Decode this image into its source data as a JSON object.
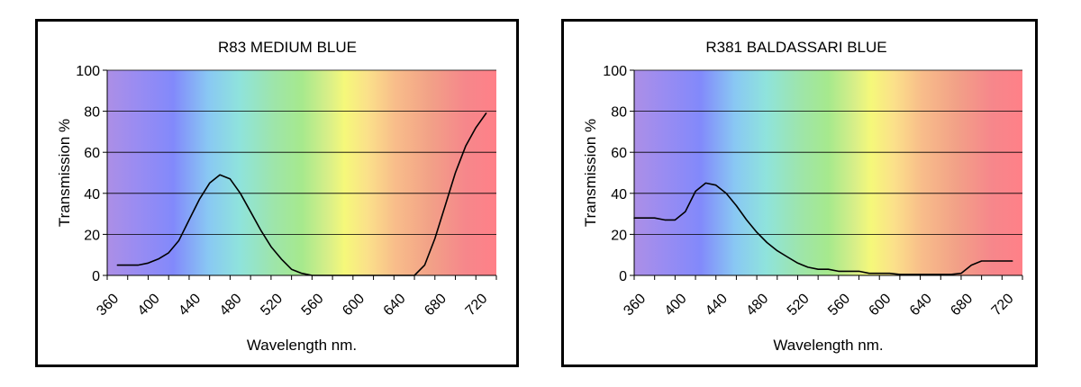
{
  "chart_data": [
    {
      "type": "line",
      "title": "R83 MEDIUM BLUE",
      "xlabel": "Wavelength nm.",
      "ylabel": "Transmission %",
      "xlim": [
        360,
        740
      ],
      "ylim": [
        0,
        100
      ],
      "x_ticks": [
        360,
        400,
        440,
        480,
        520,
        560,
        600,
        640,
        680,
        720
      ],
      "y_ticks": [
        0,
        20,
        40,
        60,
        80,
        100
      ],
      "grid": true,
      "background": "visible-spectrum",
      "line_color": "#000000",
      "series": [
        {
          "x": [
            370,
            380,
            390,
            400,
            410,
            420,
            430,
            440,
            450,
            460,
            470,
            480,
            490,
            500,
            510,
            520,
            530,
            540,
            550,
            560,
            570,
            580,
            590,
            600,
            610,
            620,
            630,
            640,
            650,
            660,
            670,
            680,
            690,
            700,
            710,
            720,
            730
          ],
          "y": [
            5,
            5,
            5,
            6,
            8,
            11,
            17,
            27,
            37,
            45,
            49,
            47,
            40,
            31,
            22,
            14,
            8,
            3,
            1,
            0,
            0,
            0,
            0,
            0,
            0,
            0,
            0,
            0,
            0,
            0,
            5,
            18,
            34,
            50,
            63,
            72,
            79
          ]
        }
      ]
    },
    {
      "type": "line",
      "title": "R381 BALDASSARI BLUE",
      "xlabel": "Wavelength nm.",
      "ylabel": "Transmission %",
      "xlim": [
        360,
        740
      ],
      "ylim": [
        0,
        100
      ],
      "x_ticks": [
        360,
        400,
        440,
        480,
        520,
        560,
        600,
        640,
        680,
        720
      ],
      "y_ticks": [
        0,
        20,
        40,
        60,
        80,
        100
      ],
      "grid": true,
      "background": "visible-spectrum",
      "line_color": "#000000",
      "series": [
        {
          "x": [
            360,
            370,
            380,
            390,
            400,
            410,
            420,
            430,
            440,
            450,
            460,
            470,
            480,
            490,
            500,
            510,
            520,
            530,
            540,
            550,
            560,
            570,
            580,
            590,
            600,
            610,
            620,
            630,
            640,
            650,
            660,
            670,
            680,
            690,
            700,
            710,
            720,
            730
          ],
          "y": [
            28,
            28,
            28,
            27,
            27,
            31,
            41,
            45,
            44,
            40,
            34,
            27,
            21,
            16,
            12,
            9,
            6,
            4,
            3,
            3,
            2,
            2,
            2,
            1,
            1,
            1,
            0.5,
            0.5,
            0.5,
            0.5,
            0.5,
            0.5,
            1,
            5,
            7,
            7,
            7,
            7
          ]
        }
      ]
    }
  ]
}
